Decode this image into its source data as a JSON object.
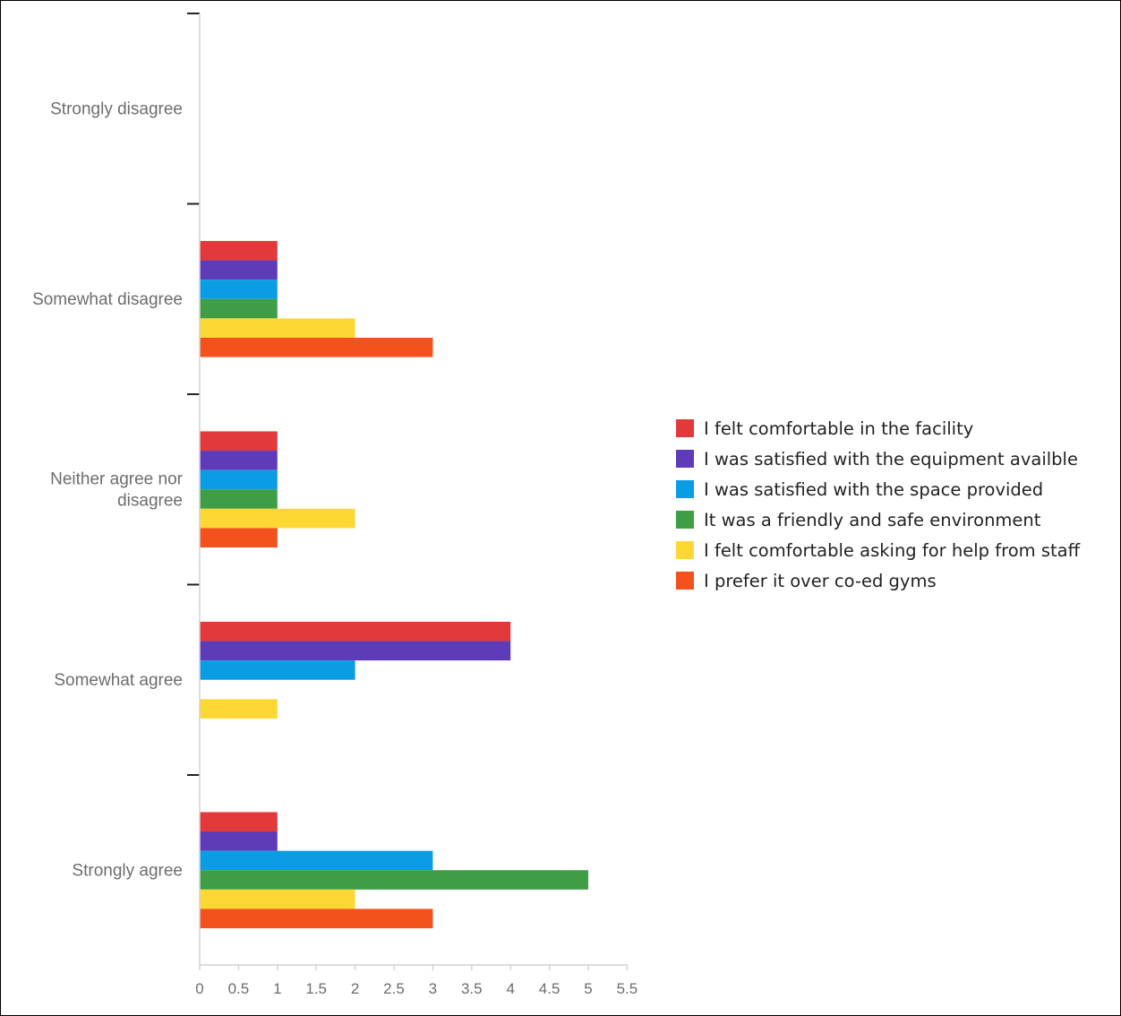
{
  "chart_data": {
    "type": "bar",
    "orientation": "horizontal",
    "title": "",
    "xlabel": "",
    "ylabel": "",
    "categories": [
      "Strongly disagree",
      "Somewhat disagree",
      "Neither agree nor disagree",
      "Somewhat agree",
      "Strongly agree"
    ],
    "category_label_lines": [
      [
        "Strongly disagree"
      ],
      [
        "Somewhat disagree"
      ],
      [
        "Neither agree nor",
        "disagree"
      ],
      [
        "Somewhat agree"
      ],
      [
        "Strongly agree"
      ]
    ],
    "xlim": [
      0,
      5.5
    ],
    "x_ticks": [
      "0",
      "0.5",
      "1",
      "1.5",
      "2",
      "2.5",
      "3",
      "3.5",
      "4",
      "4.5",
      "5",
      "5.5"
    ],
    "grid": false,
    "legend_position": "right",
    "series": [
      {
        "name": "I felt comfortable in the facility",
        "color": "#e23a3a",
        "values": [
          0,
          1,
          1,
          4,
          1
        ]
      },
      {
        "name": "I was satisfied with the equipment availble",
        "color": "#5e3bb8",
        "values": [
          0,
          1,
          1,
          4,
          1
        ]
      },
      {
        "name": "I was satisfied with the space provided",
        "color": "#0a9de3",
        "values": [
          0,
          1,
          1,
          2,
          3
        ]
      },
      {
        "name": "It was a friendly and safe environment",
        "color": "#3f9e45",
        "values": [
          0,
          1,
          1,
          0,
          5
        ]
      },
      {
        "name": "I felt comfortable asking for help from staff",
        "color": "#fdd835",
        "values": [
          0,
          2,
          2,
          1,
          2
        ]
      },
      {
        "name": "I prefer it over co-ed gyms",
        "color": "#f4511e",
        "values": [
          0,
          3,
          1,
          0,
          3
        ]
      }
    ]
  }
}
